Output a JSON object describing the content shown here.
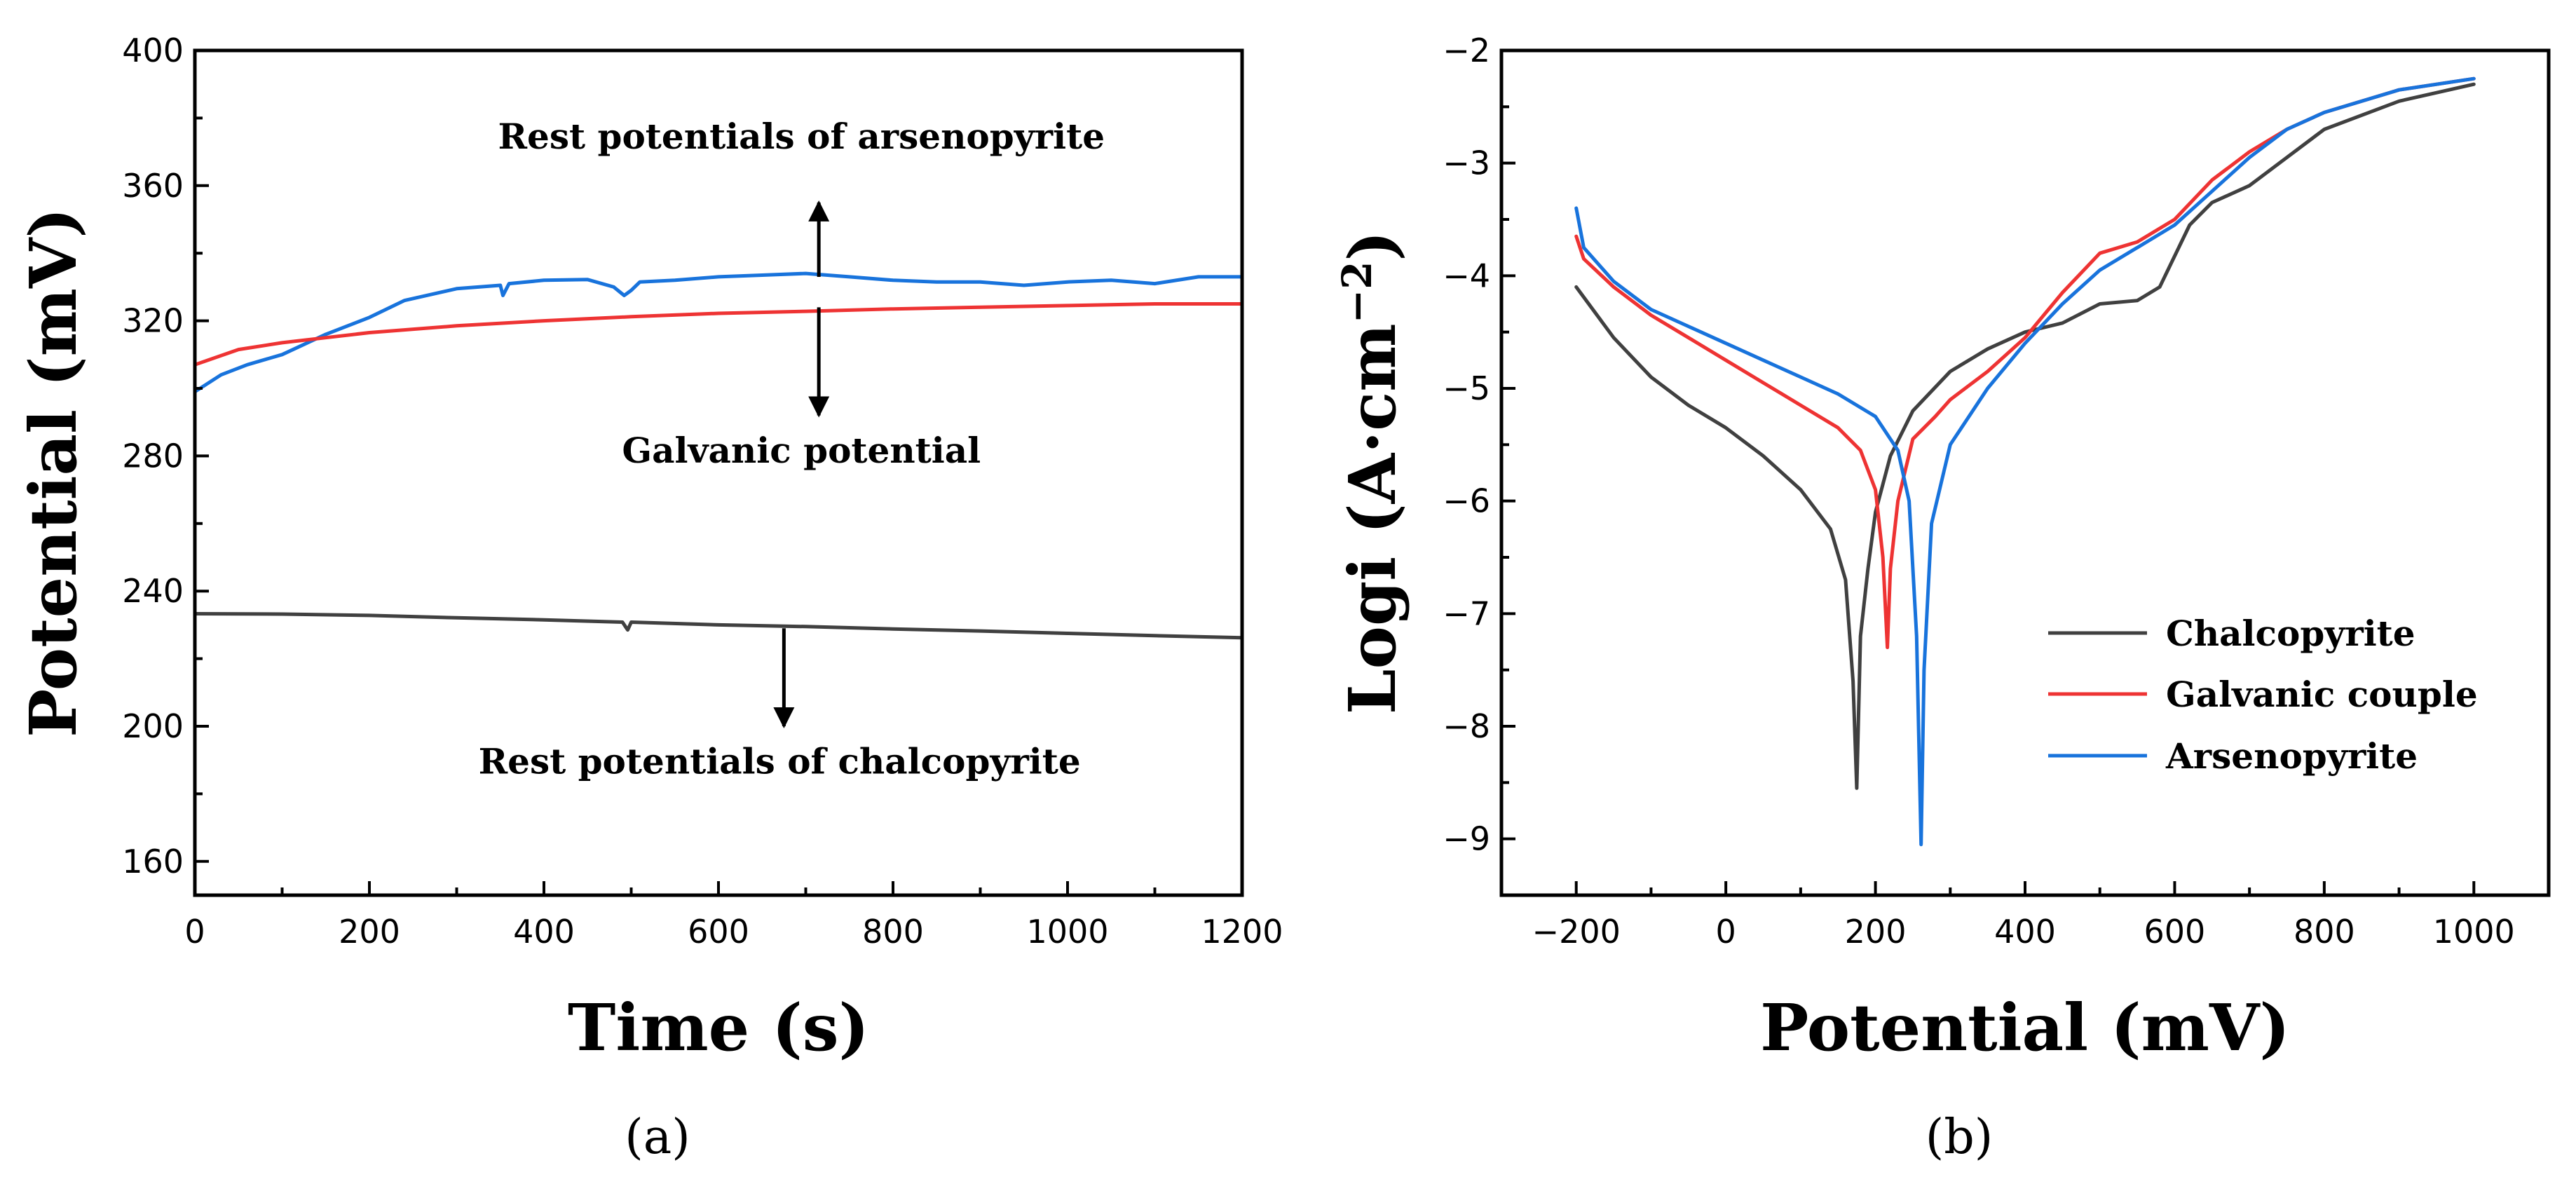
{
  "colors": {
    "chalcopyrite": "#404040",
    "galvanic": "#ee3333",
    "arsenopyrite": "#1873dc",
    "axis": "#000000"
  },
  "chart_data": [
    {
      "id": "a",
      "type": "line",
      "panel_label": "(a)",
      "xlabel": "Time (s)",
      "ylabel": "Potential (mV)",
      "xlim": [
        0,
        1200
      ],
      "ylim": [
        150,
        400
      ],
      "xticks": [
        0,
        200,
        400,
        600,
        800,
        1000,
        1200
      ],
      "xtick_labels": [
        "0",
        "200",
        "400",
        "600",
        "800",
        "1000",
        "1200"
      ],
      "yticks": [
        160,
        200,
        240,
        280,
        320,
        360,
        400
      ],
      "ytick_labels": [
        "160",
        "200",
        "240",
        "280",
        "320",
        "360",
        "400"
      ],
      "series": [
        {
          "name": "Arsenopyrite rest potential",
          "color_key": "arsenopyrite",
          "x": [
            0,
            30,
            60,
            100,
            150,
            200,
            240,
            300,
            350,
            353,
            360,
            400,
            450,
            480,
            492,
            500,
            510,
            550,
            600,
            650,
            700,
            750,
            800,
            850,
            900,
            950,
            1000,
            1050,
            1100,
            1150,
            1200
          ],
          "y": [
            299,
            304,
            307,
            310,
            316,
            321,
            326,
            329.5,
            330.5,
            327.5,
            331,
            332,
            332.2,
            330,
            327.5,
            329,
            331.5,
            332,
            333,
            333.5,
            334,
            333,
            332,
            331.5,
            331.5,
            330.5,
            331.5,
            332,
            331,
            333,
            333
          ]
        },
        {
          "name": "Galvanic potential",
          "color_key": "galvanic",
          "x": [
            0,
            50,
            100,
            150,
            200,
            300,
            400,
            500,
            600,
            700,
            800,
            900,
            1000,
            1100,
            1200
          ],
          "y": [
            307,
            311.5,
            313.5,
            315,
            316.5,
            318.5,
            320,
            321.2,
            322.2,
            322.8,
            323.5,
            324,
            324.5,
            325,
            325
          ]
        },
        {
          "name": "Chalcopyrite rest potential",
          "color_key": "chalcopyrite",
          "x": [
            0,
            100,
            200,
            300,
            400,
            490,
            496,
            500,
            600,
            700,
            800,
            900,
            1000,
            1100,
            1200
          ],
          "y": [
            233.3,
            233.2,
            232.8,
            232.1,
            231.5,
            230.8,
            228.5,
            230.8,
            230,
            229.5,
            228.8,
            228.2,
            227.5,
            226.8,
            226.2
          ]
        }
      ],
      "annotations": [
        {
          "text": "Rest potentials of arsenopyrite",
          "x": 695,
          "y": 371
        },
        {
          "text": "Galvanic potential",
          "x": 695,
          "y": 278
        },
        {
          "text": "Rest potentials of chalcopyrite",
          "x": 670,
          "y": 186
        }
      ],
      "arrows": [
        {
          "x": 715,
          "from": 333,
          "to": 355
        },
        {
          "x": 715,
          "from": 324,
          "to": 292
        },
        {
          "x": 675,
          "from": 229,
          "to": 200
        }
      ]
    },
    {
      "id": "b",
      "type": "line",
      "panel_label": "(b)",
      "xlabel": "Potential (mV)",
      "ylabel_main": "Logi (A·cm",
      "ylabel_sup": "−2",
      "ylabel_close": ")",
      "xlim": [
        -300,
        1100
      ],
      "ylim": [
        -9.5,
        -2
      ],
      "xticks": [
        -200,
        0,
        200,
        400,
        600,
        800,
        1000
      ],
      "xtick_labels": [
        "−200",
        "0",
        "200",
        "400",
        "600",
        "800",
        "1000"
      ],
      "yticks": [
        -9,
        -8,
        -7,
        -6,
        -5,
        -4,
        -3,
        -2
      ],
      "ytick_labels": [
        "−9",
        "−8",
        "−7",
        "−6",
        "−5",
        "−4",
        "−3",
        "−2"
      ],
      "legend": {
        "position": "lower-right",
        "entries": [
          "Chalcopyrite",
          "Galvanic couple",
          "Arsenopyrite"
        ]
      },
      "series": [
        {
          "name": "Chalcopyrite",
          "color_key": "chalcopyrite",
          "x": [
            -200,
            -150,
            -100,
            -50,
            0,
            50,
            100,
            140,
            160,
            170,
            175,
            180,
            190,
            200,
            220,
            250,
            300,
            350,
            400,
            450,
            500,
            550,
            580,
            620,
            650,
            700,
            750,
            800,
            900,
            1000
          ],
          "y": [
            -4.1,
            -4.55,
            -4.9,
            -5.15,
            -5.35,
            -5.6,
            -5.9,
            -6.25,
            -6.7,
            -7.6,
            -8.55,
            -7.2,
            -6.6,
            -6.1,
            -5.6,
            -5.2,
            -4.85,
            -4.65,
            -4.5,
            -4.42,
            -4.25,
            -4.22,
            -4.1,
            -3.55,
            -3.35,
            -3.2,
            -2.95,
            -2.7,
            -2.45,
            -2.3
          ]
        },
        {
          "name": "Galvanic couple",
          "color_key": "galvanic",
          "x": [
            -200,
            -190,
            -150,
            -100,
            -50,
            0,
            50,
            100,
            150,
            180,
            200,
            210,
            216,
            220,
            230,
            250,
            280,
            300,
            350,
            400,
            450,
            500,
            550,
            600,
            650,
            700,
            750,
            800,
            900,
            1000
          ],
          "y": [
            -3.65,
            -3.85,
            -4.1,
            -4.35,
            -4.55,
            -4.75,
            -4.95,
            -5.15,
            -5.35,
            -5.55,
            -5.9,
            -6.5,
            -7.3,
            -6.6,
            -6.0,
            -5.45,
            -5.25,
            -5.1,
            -4.85,
            -4.55,
            -4.15,
            -3.8,
            -3.7,
            -3.5,
            -3.15,
            -2.9,
            -2.7,
            -2.55,
            -2.35,
            -2.25
          ]
        },
        {
          "name": "Arsenopyrite",
          "color_key": "arsenopyrite",
          "x": [
            -200,
            -190,
            -150,
            -100,
            -50,
            0,
            50,
            100,
            150,
            200,
            230,
            245,
            255,
            261,
            265,
            275,
            300,
            350,
            400,
            450,
            500,
            550,
            600,
            650,
            700,
            750,
            800,
            900,
            1000
          ],
          "y": [
            -3.4,
            -3.75,
            -4.05,
            -4.3,
            -4.45,
            -4.6,
            -4.75,
            -4.9,
            -5.05,
            -5.25,
            -5.55,
            -6.0,
            -7.2,
            -9.05,
            -7.5,
            -6.2,
            -5.5,
            -5.0,
            -4.6,
            -4.25,
            -3.95,
            -3.75,
            -3.55,
            -3.25,
            -2.95,
            -2.7,
            -2.55,
            -2.35,
            -2.25
          ]
        }
      ]
    }
  ]
}
